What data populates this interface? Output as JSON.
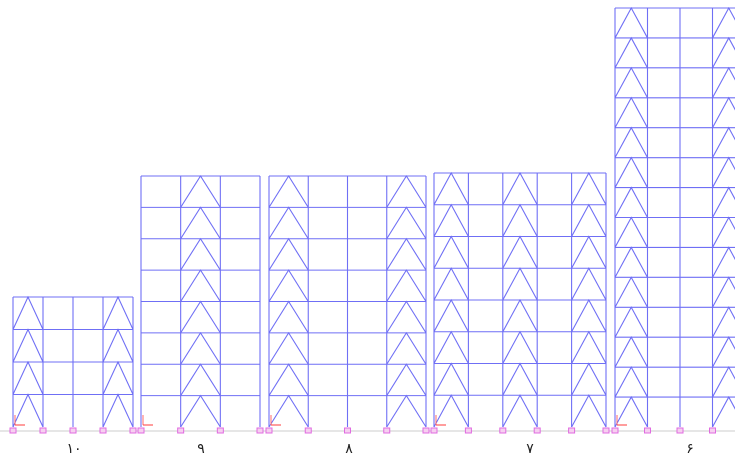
{
  "frames": [
    {
      "label": "۱۰",
      "stories": 4,
      "bays": 4,
      "braced_bays": [
        1,
        4
      ]
    },
    {
      "label": "۹",
      "stories": 8,
      "bays": 3,
      "braced_bays": [
        2
      ]
    },
    {
      "label": "۸",
      "stories": 8,
      "bays": 4,
      "braced_bays": [
        1,
        4
      ]
    },
    {
      "label": "۷",
      "stories": 8,
      "bays": 5,
      "braced_bays": [
        1,
        3,
        5
      ]
    },
    {
      "label": "۶",
      "stories": 14,
      "bays": 4,
      "braced_bays": [
        1,
        4
      ]
    }
  ],
  "colors": {
    "members": "#6f6ff5",
    "support": "#e06be0",
    "axis_x": "#ff3b3b",
    "axis_y": "#ff6a6a"
  }
}
